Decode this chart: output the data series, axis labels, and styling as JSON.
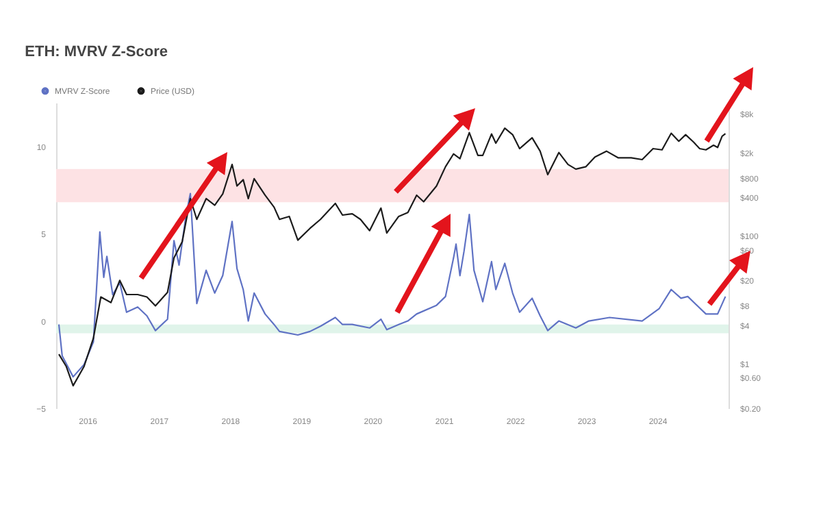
{
  "chart_data": {
    "type": "line",
    "title": "ETH: MVRV Z-Score",
    "xlim": [
      "2015-07-25",
      "2024-12-31"
    ],
    "xticks": [
      "2016",
      "2017",
      "2018",
      "2019",
      "2020",
      "2021",
      "2022",
      "2023",
      "2024"
    ],
    "ylim": [
      -5,
      12.5
    ],
    "yticks": [
      -5,
      0,
      5,
      10
    ],
    "y2lim": [
      0.2,
      12000
    ],
    "y2ticks": [
      {
        "value": 0.2,
        "label": "$0.20"
      },
      {
        "value": 0.6,
        "label": "$0.60"
      },
      {
        "value": 1,
        "label": "$1"
      },
      {
        "value": 4,
        "label": "$4"
      },
      {
        "value": 8,
        "label": "$8"
      },
      {
        "value": 20,
        "label": "$20"
      },
      {
        "value": 60,
        "label": "$60"
      },
      {
        "value": 100,
        "label": "$100"
      },
      {
        "value": 400,
        "label": "$400"
      },
      {
        "value": 800,
        "label": "$800"
      },
      {
        "value": 2000,
        "label": "$2k"
      },
      {
        "value": 8000,
        "label": "$8k"
      }
    ],
    "log": "y2",
    "legend": "top left",
    "bands": [
      {
        "axis": "y",
        "from": 6.8,
        "to": 8.7,
        "color": "#fde2e4"
      },
      {
        "axis": "y",
        "from": -0.7,
        "to": -0.2,
        "color": "#e0f4ea"
      }
    ],
    "series": [
      {
        "name": "MVRV Z-Score",
        "color": "#5f72c4",
        "x": [
          "2015-08-08",
          "2015-08-25",
          "2015-10-20",
          "2015-12-15",
          "2016-02-01",
          "2016-03-05",
          "2016-03-25",
          "2016-04-10",
          "2016-05-10",
          "2016-06-15",
          "2016-07-20",
          "2016-09-15",
          "2016-11-01",
          "2016-12-15",
          "2017-02-15",
          "2017-03-20",
          "2017-04-15",
          "2017-05-20",
          "2017-06-12",
          "2017-07-15",
          "2017-09-01",
          "2017-10-15",
          "2017-11-25",
          "2018-01-12",
          "2018-02-06",
          "2018-03-10",
          "2018-04-05",
          "2018-05-05",
          "2018-06-30",
          "2018-08-15",
          "2018-09-12",
          "2018-12-15",
          "2019-02-15",
          "2019-04-10",
          "2019-06-25",
          "2019-08-01",
          "2019-09-20",
          "2019-12-18",
          "2020-02-14",
          "2020-03-15",
          "2020-05-15",
          "2020-07-01",
          "2020-08-15",
          "2020-11-25",
          "2021-01-10",
          "2021-02-20",
          "2021-03-05",
          "2021-03-25",
          "2021-04-15",
          "2021-05-12",
          "2021-06-05",
          "2021-07-20",
          "2021-09-03",
          "2021-09-25",
          "2021-11-10",
          "2021-12-20",
          "2022-01-25",
          "2022-03-30",
          "2022-05-10",
          "2022-06-18",
          "2022-08-14",
          "2022-11-09",
          "2023-01-15",
          "2023-05-01",
          "2023-10-15",
          "2024-01-10",
          "2024-03-12",
          "2024-05-01",
          "2024-06-05",
          "2024-09-06",
          "2024-11-05",
          "2024-12-15"
        ],
        "values": [
          -0.2,
          -2.0,
          -3.2,
          -2.5,
          -1.2,
          5.1,
          2.5,
          3.7,
          1.5,
          2.2,
          0.5,
          0.8,
          0.3,
          -0.55,
          0.1,
          4.6,
          3.2,
          6.0,
          7.3,
          1.0,
          2.9,
          1.6,
          2.6,
          5.7,
          3.0,
          1.8,
          0.0,
          1.6,
          0.4,
          -0.2,
          -0.6,
          -0.8,
          -0.6,
          -0.3,
          0.2,
          -0.2,
          -0.2,
          -0.4,
          0.1,
          -0.5,
          -0.2,
          0.0,
          0.4,
          0.9,
          1.4,
          3.6,
          4.4,
          2.6,
          4.0,
          6.1,
          2.9,
          1.1,
          3.4,
          1.8,
          3.3,
          1.6,
          0.5,
          1.3,
          0.3,
          -0.55,
          0.0,
          -0.4,
          0.0,
          0.2,
          0.0,
          0.7,
          1.8,
          1.3,
          1.4,
          0.4,
          0.4,
          1.4
        ]
      },
      {
        "name": "Price (USD)",
        "color": "#1c1c1c",
        "axis": "y2",
        "x": [
          "2015-08-08",
          "2015-09-15",
          "2015-10-20",
          "2015-12-15",
          "2016-02-01",
          "2016-03-10",
          "2016-05-01",
          "2016-06-15",
          "2016-07-20",
          "2016-09-15",
          "2016-11-01",
          "2016-12-15",
          "2017-02-15",
          "2017-03-20",
          "2017-05-01",
          "2017-06-12",
          "2017-07-15",
          "2017-09-01",
          "2017-10-15",
          "2017-11-25",
          "2018-01-12",
          "2018-02-06",
          "2018-03-10",
          "2018-04-05",
          "2018-05-05",
          "2018-06-30",
          "2018-08-15",
          "2018-09-12",
          "2018-11-01",
          "2018-12-15",
          "2019-02-15",
          "2019-04-10",
          "2019-06-25",
          "2019-08-01",
          "2019-09-20",
          "2019-11-01",
          "2019-12-18",
          "2020-02-14",
          "2020-03-15",
          "2020-05-15",
          "2020-07-01",
          "2020-08-15",
          "2020-09-20",
          "2020-11-25",
          "2021-01-10",
          "2021-02-20",
          "2021-03-25",
          "2021-05-12",
          "2021-06-25",
          "2021-07-20",
          "2021-09-03",
          "2021-09-25",
          "2021-11-10",
          "2021-12-20",
          "2022-01-25",
          "2022-03-30",
          "2022-05-10",
          "2022-06-18",
          "2022-08-14",
          "2022-09-30",
          "2022-11-09",
          "2022-12-31",
          "2023-02-15",
          "2023-04-15",
          "2023-06-15",
          "2023-08-20",
          "2023-10-15",
          "2023-12-10",
          "2024-01-25",
          "2024-03-12",
          "2024-04-20",
          "2024-05-25",
          "2024-07-05",
          "2024-08-05",
          "2024-09-06",
          "2024-10-15",
          "2024-11-05",
          "2024-11-28",
          "2024-12-15"
        ],
        "values": [
          1.4,
          0.9,
          0.45,
          0.9,
          2.5,
          11,
          9,
          20,
          12,
          12,
          11,
          8,
          13,
          45,
          80,
          380,
          180,
          380,
          300,
          450,
          1300,
          600,
          750,
          380,
          780,
          430,
          280,
          180,
          200,
          85,
          130,
          180,
          320,
          210,
          220,
          180,
          120,
          270,
          110,
          200,
          230,
          430,
          340,
          600,
          1200,
          1900,
          1600,
          4100,
          1800,
          1800,
          3900,
          2800,
          4800,
          3800,
          2300,
          3400,
          2100,
          900,
          2000,
          1300,
          1100,
          1200,
          1700,
          2100,
          1650,
          1650,
          1550,
          2300,
          2200,
          4000,
          3000,
          3800,
          2900,
          2300,
          2200,
          2600,
          2400,
          3600,
          3950
        ]
      }
    ]
  }
}
